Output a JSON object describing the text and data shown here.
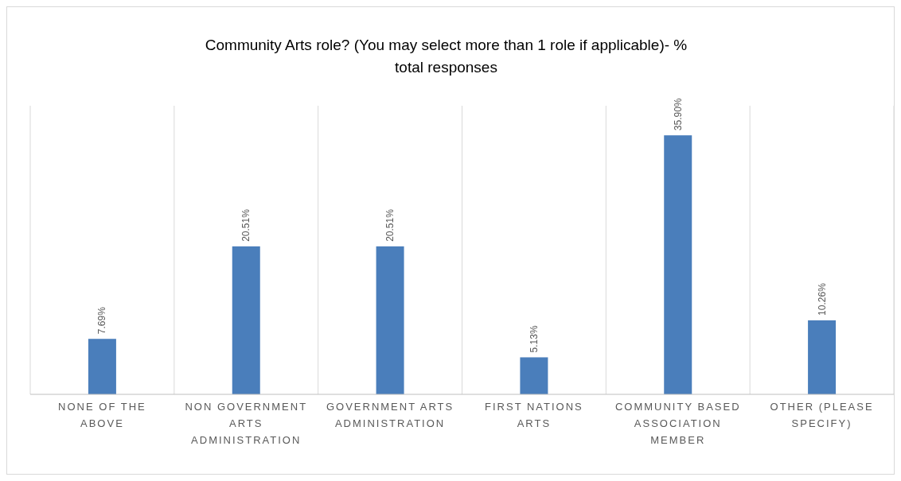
{
  "chart_data": {
    "type": "bar",
    "title": "Community Arts role?  (You may select more than 1 role if applicable)- % total responses",
    "categories": [
      "NONE OF THE ABOVE",
      "NON GOVERNMENT ARTS ADMINISTRATION",
      "GOVERNMENT ARTS ADMINISTRATION",
      "FIRST NATIONS ARTS",
      "COMMUNITY BASED ASSOCIATION MEMBER",
      "OTHER (PLEASE SPECIFY)"
    ],
    "values": [
      7.69,
      20.51,
      20.51,
      5.13,
      35.9,
      10.26
    ],
    "value_labels": [
      "7.69%",
      "20.51%",
      "20.51%",
      "5.13%",
      "35.90%",
      "10.26%"
    ],
    "color": "#4a7ebb",
    "ylim": [
      0,
      40
    ],
    "tick_labels": "x",
    "grid": "x"
  }
}
